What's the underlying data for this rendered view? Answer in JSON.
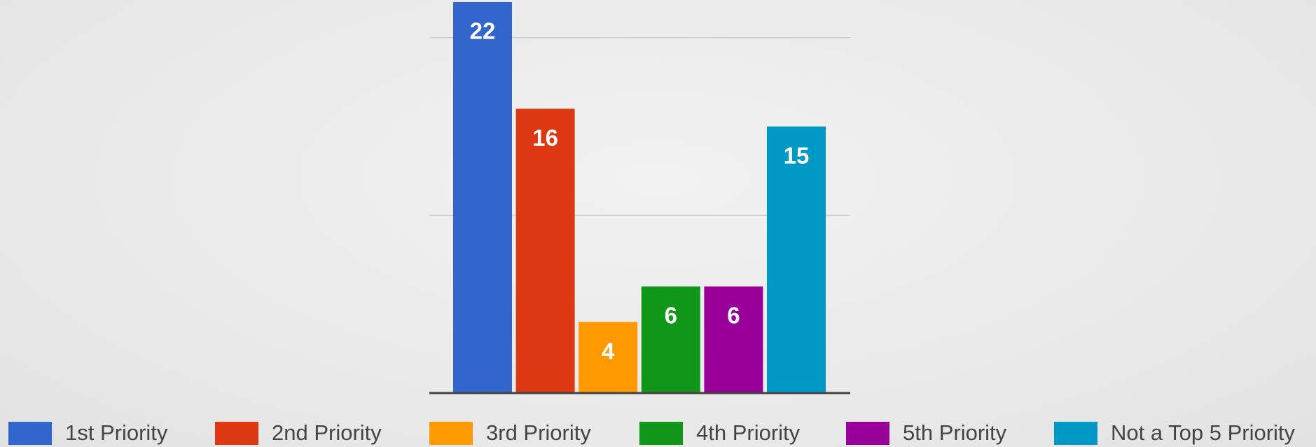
{
  "chart_data": {
    "type": "bar",
    "categories": [
      null
    ],
    "series": [
      {
        "name": "1st Priority",
        "color": "#3366cc",
        "values": [
          22
        ]
      },
      {
        "name": "2nd Priority",
        "color": "#dc3912",
        "values": [
          16
        ]
      },
      {
        "name": "3rd Priority",
        "color": "#ff9900",
        "values": [
          4
        ]
      },
      {
        "name": "4th Priority",
        "color": "#109618",
        "values": [
          6
        ]
      },
      {
        "name": "5th Priority",
        "color": "#990099",
        "values": [
          6
        ]
      },
      {
        "name": "Not a Top 5 Priority",
        "color": "#0099c6",
        "values": [
          15
        ]
      }
    ],
    "ylim": [
      0,
      22
    ],
    "yticks": [
      0,
      10,
      20
    ],
    "grid": true,
    "legend": "bottom"
  }
}
